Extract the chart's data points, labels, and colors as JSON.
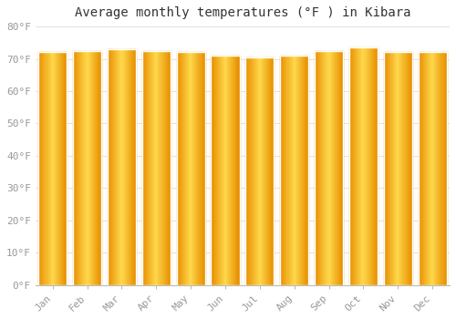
{
  "title": "Average monthly temperatures (°F ) in Kibara",
  "months": [
    "Jan",
    "Feb",
    "Mar",
    "Apr",
    "May",
    "Jun",
    "Jul",
    "Aug",
    "Sep",
    "Oct",
    "Nov",
    "Dec"
  ],
  "values": [
    72.1,
    72.5,
    73.1,
    72.5,
    72.1,
    71.1,
    70.5,
    71.1,
    72.5,
    73.5,
    72.1,
    72.0
  ],
  "bar_color_edge": "#E89000",
  "bar_color_center": "#FFD84D",
  "background_color": "#FFFFFF",
  "plot_bg_color": "#FFFFFF",
  "grid_color": "#DDDDDD",
  "ylim": [
    0,
    80
  ],
  "yticks": [
    0,
    10,
    20,
    30,
    40,
    50,
    60,
    70,
    80
  ],
  "ytick_labels": [
    "0°F",
    "10°F",
    "20°F",
    "30°F",
    "40°F",
    "50°F",
    "60°F",
    "70°F",
    "80°F"
  ],
  "title_fontsize": 10,
  "tick_fontsize": 8,
  "title_color": "#333333",
  "tick_color": "#999999",
  "bar_width": 0.82,
  "n_gradient_strips": 30
}
